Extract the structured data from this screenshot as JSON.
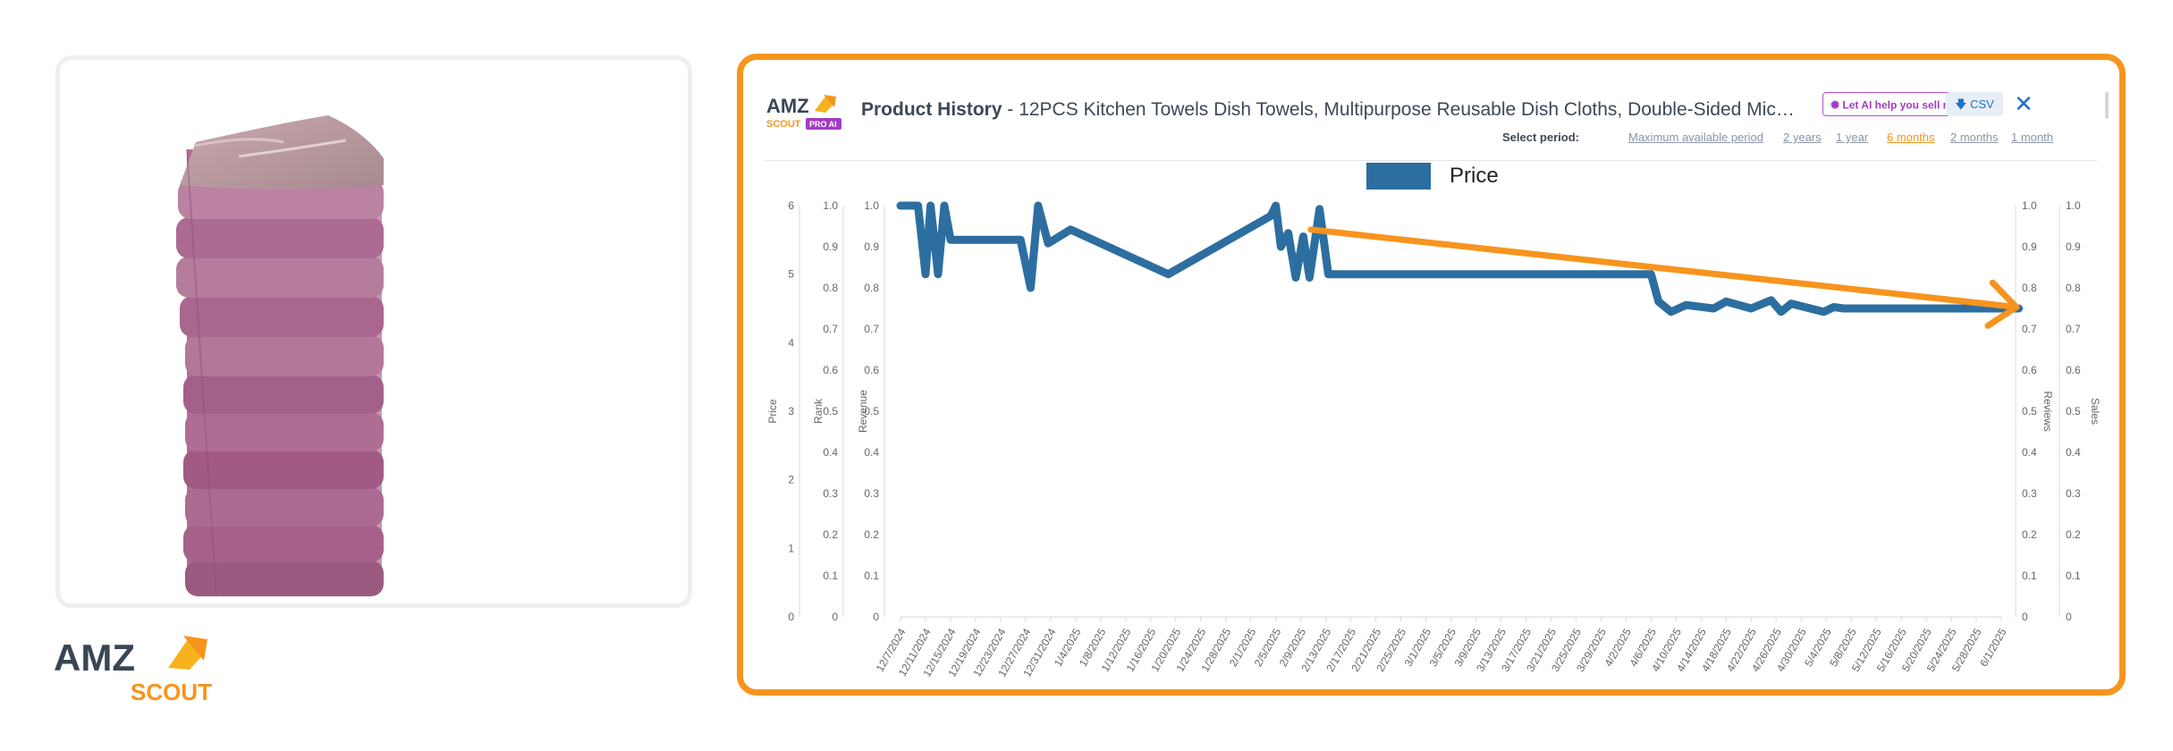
{
  "product_card": {
    "image_alt": "Stack of purple microfiber kitchen towels"
  },
  "brand_logo": {
    "amz": "AMZ",
    "scout": "SCOUT"
  },
  "header": {
    "logo_amz": "AMZ",
    "logo_scout": "SCOUT",
    "logo_badge": "PRO AI",
    "title_bold": "Product History",
    "title_rest": " - 12PCS Kitchen Towels Dish Towels, Multipurpose Reusable Dish Cloths, Double-Sided Microfiber Cleaning Towels for Kitchen",
    "ai_button_label": "Let AI help you sell more",
    "csv_label": "CSV",
    "close_label": "✕"
  },
  "period": {
    "label": "Select period:",
    "options": [
      "Maximum available period",
      "2 years",
      "1 year",
      "6 months",
      "2 months",
      "1 month"
    ],
    "active": "6 months"
  },
  "chart_data": {
    "type": "line",
    "title": "",
    "legend": [
      "Price"
    ],
    "left_axes": [
      {
        "label": "Price",
        "ticks": [
          "0",
          "1",
          "2",
          "3",
          "4",
          "5",
          "6"
        ]
      },
      {
        "label": "Rank",
        "ticks": [
          "0",
          "0.1",
          "0.2",
          "0.3",
          "0.4",
          "0.5",
          "0.6",
          "0.7",
          "0.8",
          "0.9",
          "1.0"
        ]
      },
      {
        "label": "Revenue",
        "ticks": [
          "0",
          "0.1",
          "0.2",
          "0.3",
          "0.4",
          "0.5",
          "0.6",
          "0.7",
          "0.8",
          "0.9",
          "1.0"
        ]
      }
    ],
    "right_axes": [
      {
        "label": "Reviews",
        "ticks": [
          "0",
          "0.1",
          "0.2",
          "0.3",
          "0.4",
          "0.5",
          "0.6",
          "0.7",
          "0.8",
          "0.9",
          "1.0"
        ]
      },
      {
        "label": "Sales",
        "ticks": [
          "0",
          "0.1",
          "0.2",
          "0.3",
          "0.4",
          "0.5",
          "0.6",
          "0.7",
          "0.8",
          "0.9",
          "1.0"
        ]
      }
    ],
    "x_labels": [
      "12/7/2024",
      "12/11/2024",
      "12/15/2024",
      "12/19/2024",
      "12/23/2024",
      "12/27/2024",
      "12/31/2024",
      "1/4/2025",
      "1/8/2025",
      "1/12/2025",
      "1/16/2025",
      "1/20/2025",
      "1/24/2025",
      "1/28/2025",
      "2/1/2025",
      "2/5/2025",
      "2/9/2025",
      "2/13/2025",
      "2/17/2025",
      "2/21/2025",
      "2/25/2025",
      "3/1/2025",
      "3/5/2025",
      "3/9/2025",
      "3/13/2025",
      "3/17/2025",
      "3/21/2025",
      "3/25/2025",
      "3/29/2025",
      "4/2/2025",
      "4/6/2025",
      "4/10/2025",
      "4/14/2025",
      "4/18/2025",
      "4/22/2025",
      "4/26/2025",
      "4/30/2025",
      "5/4/2025",
      "5/8/2025",
      "5/12/2025",
      "5/16/2025",
      "5/20/2025",
      "5/24/2025",
      "5/28/2025",
      "6/1/2025"
    ],
    "price_ylim": [
      0,
      6
    ],
    "series": [
      {
        "name": "Price",
        "color": "#2d6ea0",
        "points": [
          [
            0,
            6.0
          ],
          [
            0.7,
            6.0
          ],
          [
            1.0,
            5.0
          ],
          [
            1.2,
            6.0
          ],
          [
            1.5,
            5.0
          ],
          [
            1.75,
            6.0
          ],
          [
            2.0,
            5.5
          ],
          [
            4.8,
            5.5
          ],
          [
            5.2,
            4.8
          ],
          [
            5.5,
            6.0
          ],
          [
            5.9,
            5.45
          ],
          [
            6.8,
            5.65
          ],
          [
            10.7,
            5.0
          ],
          [
            14.8,
            5.85
          ],
          [
            15.0,
            6.0
          ],
          [
            15.2,
            5.4
          ],
          [
            15.5,
            5.6
          ],
          [
            15.8,
            4.95
          ],
          [
            16.1,
            5.55
          ],
          [
            16.35,
            4.95
          ],
          [
            16.75,
            5.95
          ],
          [
            17.1,
            5.0
          ],
          [
            30.0,
            5.0
          ],
          [
            30.3,
            4.6
          ],
          [
            30.8,
            4.45
          ],
          [
            31.4,
            4.55
          ],
          [
            32.5,
            4.5
          ],
          [
            33.0,
            4.6
          ],
          [
            34.0,
            4.5
          ],
          [
            34.8,
            4.62
          ],
          [
            35.2,
            4.45
          ],
          [
            35.6,
            4.57
          ],
          [
            36.9,
            4.45
          ],
          [
            37.3,
            4.52
          ],
          [
            37.7,
            4.5
          ],
          [
            44.7,
            4.5
          ]
        ]
      }
    ],
    "trend_arrow": {
      "color": "#f7941d",
      "from": [
        16.4,
        5.65
      ],
      "to": [
        44.6,
        4.52
      ]
    }
  }
}
